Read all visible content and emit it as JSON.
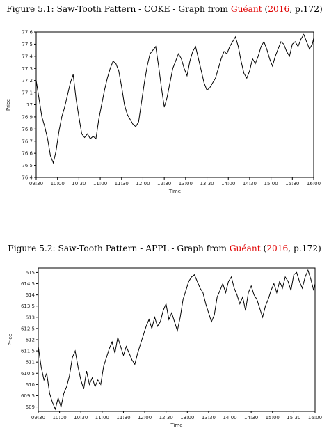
{
  "figures": [
    {
      "caption": {
        "prefix": "Figure 5.1: Saw-Tooth Pattern - COKE - Graph from ",
        "author": "Guéant",
        "open": " (",
        "year": "2016",
        "suffix": ", p.172)"
      }
    },
    {
      "caption": {
        "prefix": "Figure 5.2: Saw-Tooth Pattern - APPL - Graph from ",
        "author": "Guéant",
        "open": " (",
        "year": "2016",
        "suffix": ", p.172)"
      }
    }
  ],
  "colors": {
    "line": "#000000",
    "citation": "#e00000",
    "frame": "#000000"
  },
  "chart_data": [
    {
      "type": "line",
      "title": "",
      "xlabel": "Time",
      "ylabel": "Price",
      "xlim": [
        "09:30",
        "16:00"
      ],
      "ylim": [
        76.4,
        77.6
      ],
      "xticks": [
        "09:30",
        "10:00",
        "10:30",
        "11:00",
        "11:30",
        "12:00",
        "12:30",
        "13:00",
        "13:30",
        "14:00",
        "14:30",
        "15:00",
        "15:30",
        "16:00"
      ],
      "yticks": [
        "76.4",
        "76.5",
        "76.6",
        "76.7",
        "76.8",
        "76.9",
        "77",
        "77.1",
        "77.2",
        "77.3",
        "77.4",
        "77.5",
        "77.6"
      ],
      "grid": false,
      "series": [
        {
          "x": [
            "09:30",
            "09:34",
            "09:38",
            "09:42",
            "09:46",
            "09:50",
            "09:54",
            "09:58",
            "10:02",
            "10:06",
            "10:10",
            "10:14",
            "10:18",
            "10:22",
            "10:26",
            "10:30",
            "10:34",
            "10:38",
            "10:42",
            "10:46",
            "10:50",
            "10:54",
            "10:58",
            "11:02",
            "11:06",
            "11:10",
            "11:14",
            "11:18",
            "11:22",
            "11:26",
            "11:30",
            "11:34",
            "11:38",
            "11:42",
            "11:46",
            "11:50",
            "11:54",
            "11:58",
            "12:02",
            "12:06",
            "12:10",
            "12:14",
            "12:18",
            "12:22",
            "12:26",
            "12:30",
            "12:34",
            "12:38",
            "12:42",
            "12:46",
            "12:50",
            "12:54",
            "12:58",
            "13:02",
            "13:06",
            "13:10",
            "13:14",
            "13:18",
            "13:22",
            "13:26",
            "13:30",
            "13:34",
            "13:38",
            "13:42",
            "13:46",
            "13:50",
            "13:54",
            "13:58",
            "14:02",
            "14:06",
            "14:10",
            "14:14",
            "14:18",
            "14:22",
            "14:26",
            "14:30",
            "14:34",
            "14:38",
            "14:42",
            "14:46",
            "14:50",
            "14:54",
            "14:58",
            "15:02",
            "15:06",
            "15:10",
            "15:14",
            "15:18",
            "15:22",
            "15:26",
            "15:30",
            "15:34",
            "15:38",
            "15:42",
            "15:46",
            "15:50",
            "15:54",
            "15:58",
            "16:00"
          ],
          "values": [
            77.2,
            77.05,
            76.9,
            76.82,
            76.72,
            76.58,
            76.52,
            76.62,
            76.78,
            76.9,
            76.98,
            77.08,
            77.18,
            77.25,
            77.05,
            76.9,
            76.76,
            76.73,
            76.76,
            76.72,
            76.74,
            76.72,
            76.88,
            77.0,
            77.12,
            77.22,
            77.3,
            77.36,
            77.34,
            77.28,
            77.15,
            77.0,
            76.92,
            76.88,
            76.84,
            76.82,
            76.86,
            77.02,
            77.18,
            77.32,
            77.42,
            77.45,
            77.48,
            77.32,
            77.14,
            76.98,
            77.06,
            77.18,
            77.3,
            77.36,
            77.42,
            77.38,
            77.3,
            77.24,
            77.36,
            77.44,
            77.48,
            77.38,
            77.28,
            77.18,
            77.12,
            77.14,
            77.18,
            77.22,
            77.3,
            77.38,
            77.44,
            77.42,
            77.48,
            77.52,
            77.56,
            77.48,
            77.36,
            77.26,
            77.22,
            77.28,
            77.38,
            77.34,
            77.4,
            77.48,
            77.52,
            77.46,
            77.38,
            77.32,
            77.4,
            77.46,
            77.52,
            77.5,
            77.44,
            77.4,
            77.5,
            77.52,
            77.48,
            77.54,
            77.58,
            77.52,
            77.46,
            77.5,
            77.55
          ]
        }
      ]
    },
    {
      "type": "line",
      "title": "",
      "xlabel": "Time",
      "ylabel": "Price",
      "xlim": [
        "09:30",
        "16:00"
      ],
      "ylim": [
        608.8,
        615.2
      ],
      "xticks": [
        "09:30",
        "10:00",
        "10:30",
        "11:00",
        "11:30",
        "12:00",
        "12:30",
        "13:00",
        "13:30",
        "14:00",
        "14:30",
        "15:00",
        "15:30",
        "16:00"
      ],
      "yticks": [
        "609",
        "609.5",
        "610",
        "610.5",
        "611",
        "611.5",
        "612",
        "612.5",
        "613",
        "613.5",
        "614",
        "614.5",
        "615"
      ],
      "grid": false,
      "series": [
        {
          "x": [
            "09:30",
            "09:34",
            "09:38",
            "09:42",
            "09:46",
            "09:50",
            "09:54",
            "09:58",
            "10:02",
            "10:06",
            "10:10",
            "10:14",
            "10:18",
            "10:22",
            "10:26",
            "10:30",
            "10:34",
            "10:38",
            "10:42",
            "10:46",
            "10:50",
            "10:54",
            "10:58",
            "11:02",
            "11:06",
            "11:10",
            "11:14",
            "11:18",
            "11:22",
            "11:26",
            "11:30",
            "11:34",
            "11:38",
            "11:42",
            "11:46",
            "11:50",
            "11:54",
            "11:58",
            "12:02",
            "12:06",
            "12:10",
            "12:14",
            "12:18",
            "12:22",
            "12:26",
            "12:30",
            "12:34",
            "12:38",
            "12:42",
            "12:46",
            "12:50",
            "12:54",
            "12:58",
            "13:02",
            "13:06",
            "13:10",
            "13:14",
            "13:18",
            "13:22",
            "13:26",
            "13:30",
            "13:34",
            "13:38",
            "13:42",
            "13:46",
            "13:50",
            "13:54",
            "13:58",
            "14:02",
            "14:06",
            "14:10",
            "14:14",
            "14:18",
            "14:22",
            "14:26",
            "14:30",
            "14:34",
            "14:38",
            "14:42",
            "14:46",
            "14:50",
            "14:54",
            "14:58",
            "15:02",
            "15:06",
            "15:10",
            "15:14",
            "15:18",
            "15:22",
            "15:26",
            "15:30",
            "15:34",
            "15:38",
            "15:42",
            "15:46",
            "15:50",
            "15:54",
            "15:58",
            "16:00"
          ],
          "values": [
            611.7,
            610.8,
            610.2,
            610.5,
            609.6,
            609.2,
            608.9,
            609.4,
            609.0,
            609.6,
            609.9,
            610.4,
            611.2,
            611.5,
            610.8,
            610.2,
            609.8,
            610.6,
            610.0,
            610.3,
            609.9,
            610.2,
            610.0,
            610.8,
            611.2,
            611.6,
            611.9,
            611.4,
            612.1,
            611.7,
            611.3,
            611.7,
            611.4,
            611.1,
            610.9,
            611.4,
            611.8,
            612.2,
            612.6,
            612.9,
            612.5,
            613.0,
            612.6,
            612.8,
            613.3,
            613.6,
            612.9,
            613.2,
            612.8,
            612.4,
            613.0,
            613.8,
            614.2,
            614.6,
            614.8,
            614.9,
            614.6,
            614.3,
            614.1,
            613.6,
            613.2,
            612.8,
            613.1,
            613.9,
            614.2,
            614.5,
            614.1,
            614.6,
            614.8,
            614.3,
            614.0,
            613.6,
            613.9,
            613.3,
            614.1,
            614.4,
            614.0,
            613.8,
            613.4,
            613.0,
            613.5,
            613.8,
            614.2,
            614.5,
            614.1,
            614.6,
            614.3,
            614.8,
            614.6,
            614.2,
            614.9,
            615.0,
            614.6,
            614.3,
            614.8,
            615.1,
            614.7,
            614.2,
            614.5
          ]
        }
      ]
    }
  ]
}
